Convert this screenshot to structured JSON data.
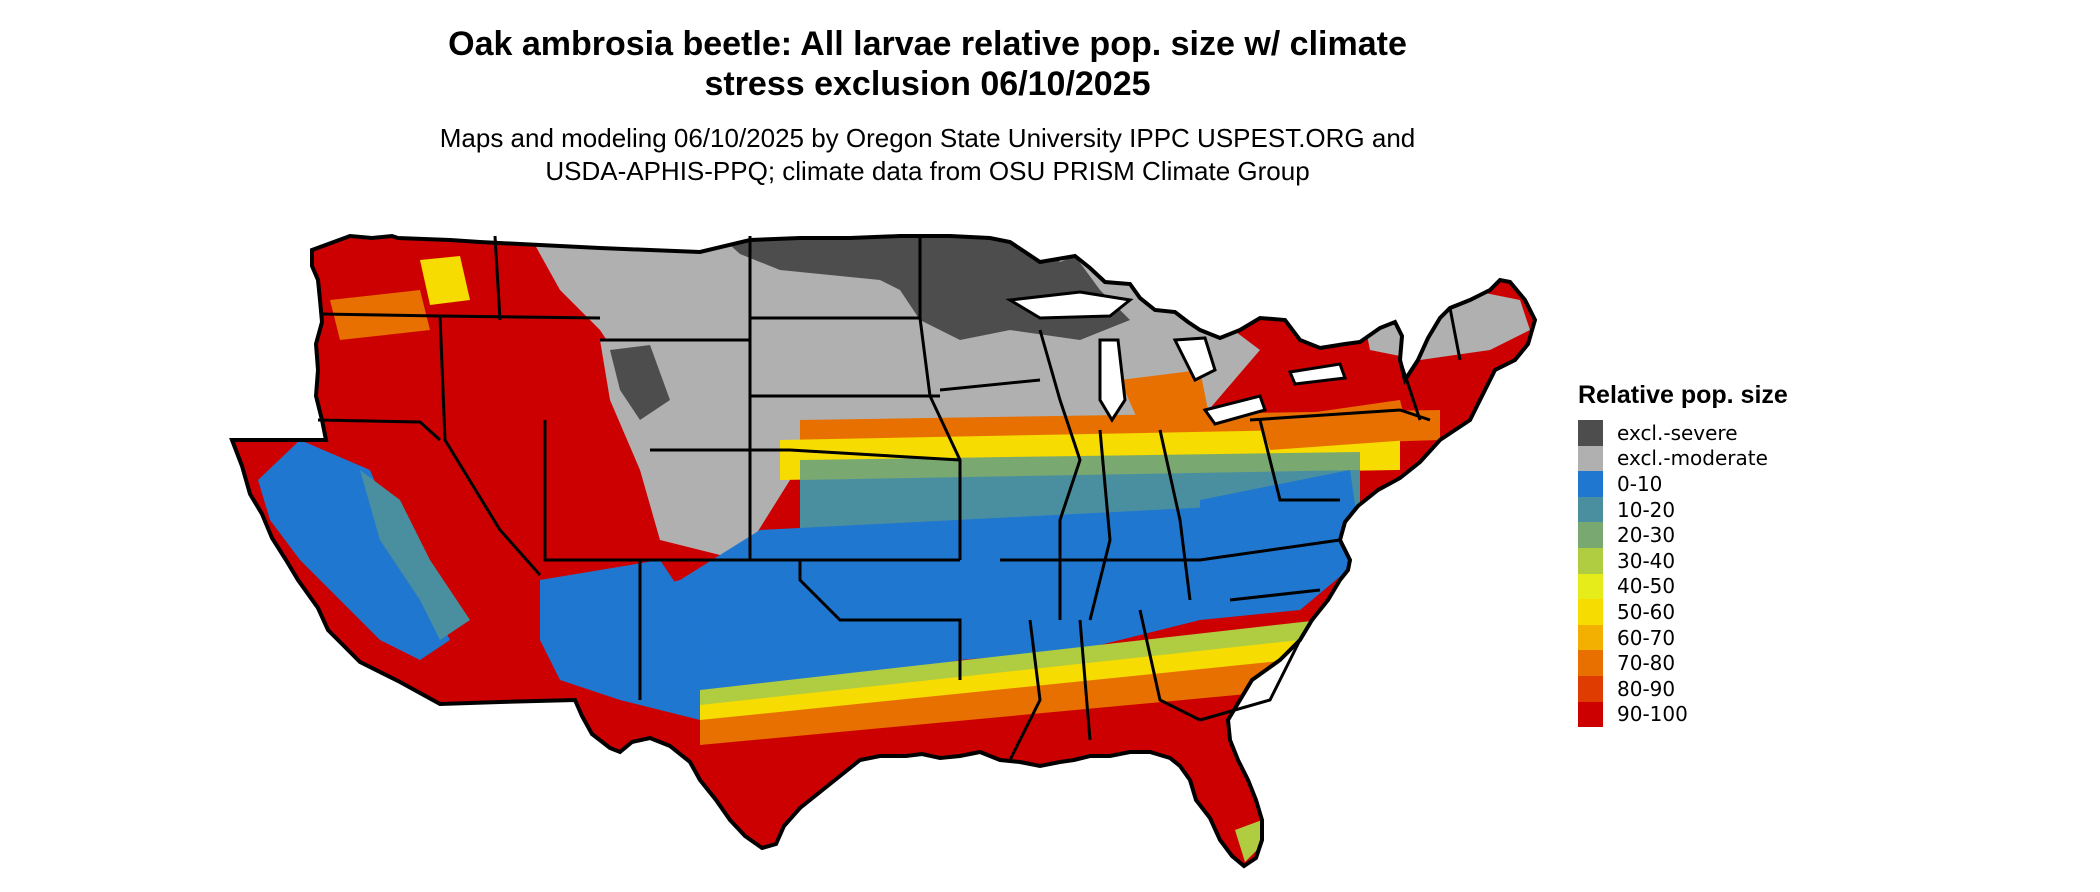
{
  "title_line1": "Oak ambrosia beetle: All larvae relative pop. size w/ climate",
  "title_line2": "stress exclusion 06/10/2025",
  "subtitle_line1": "Maps and modeling 06/10/2025 by Oregon State University IPPC USPEST.ORG and",
  "subtitle_line2": "USDA-APHIS-PPQ; climate data from OSU PRISM Climate Group",
  "legend": {
    "title": "Relative pop. size",
    "entries": [
      {
        "label": "excl.-severe",
        "color": "#4d4d4d"
      },
      {
        "label": "excl.-moderate",
        "color": "#b0b0b0"
      },
      {
        "label": "0-10",
        "color": "#1f77d0"
      },
      {
        "label": "10-20",
        "color": "#4a8fa0"
      },
      {
        "label": "20-30",
        "color": "#79a870"
      },
      {
        "label": "30-40",
        "color": "#b0cc40"
      },
      {
        "label": "40-50",
        "color": "#e6ec1a"
      },
      {
        "label": "50-60",
        "color": "#f6dc00"
      },
      {
        "label": "60-70",
        "color": "#f4b000"
      },
      {
        "label": "70-80",
        "color": "#e87000"
      },
      {
        "label": "80-90",
        "color": "#de3c00"
      },
      {
        "label": "90-100",
        "color": "#cc0000"
      }
    ]
  }
}
